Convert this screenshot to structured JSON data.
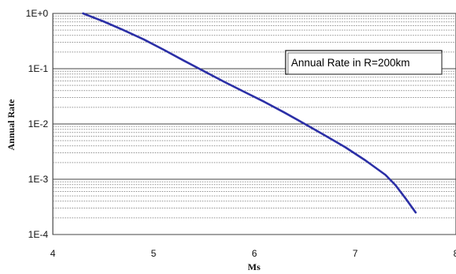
{
  "chart_data": {
    "type": "line",
    "title": "",
    "xlabel": "Ms",
    "ylabel": "Annual Rate",
    "xlim": [
      4,
      8
    ],
    "ylim": [
      0.0001,
      1
    ],
    "yscale": "log",
    "x_ticks": [
      4,
      5,
      6,
      7,
      8
    ],
    "x_tick_labels": [
      "4",
      "5",
      "6",
      "7",
      "8"
    ],
    "y_ticks": [
      1,
      0.1,
      0.01,
      0.001,
      0.0001
    ],
    "y_tick_labels": [
      "1E+0",
      "1E-1",
      "1E-2",
      "1E-3",
      "1E-4"
    ],
    "grid": "horizontal minor and major log gridlines",
    "series": [
      {
        "name": "Annual Rate in R=200km",
        "color": "#2b2fa6",
        "x": [
          4.3,
          4.5,
          4.7,
          4.9,
          5.1,
          5.3,
          5.5,
          5.7,
          5.9,
          6.1,
          6.3,
          6.5,
          6.7,
          6.9,
          7.1,
          7.3,
          7.4,
          7.5,
          7.6
        ],
        "y": [
          1.0,
          0.72,
          0.5,
          0.34,
          0.22,
          0.14,
          0.09,
          0.058,
          0.038,
          0.025,
          0.016,
          0.01,
          0.0062,
          0.0038,
          0.0022,
          0.0012,
          0.00078,
          0.00045,
          0.00025
        ]
      }
    ],
    "legend": {
      "text": "Annual Rate in R=200km",
      "placement": "upper-right"
    }
  }
}
